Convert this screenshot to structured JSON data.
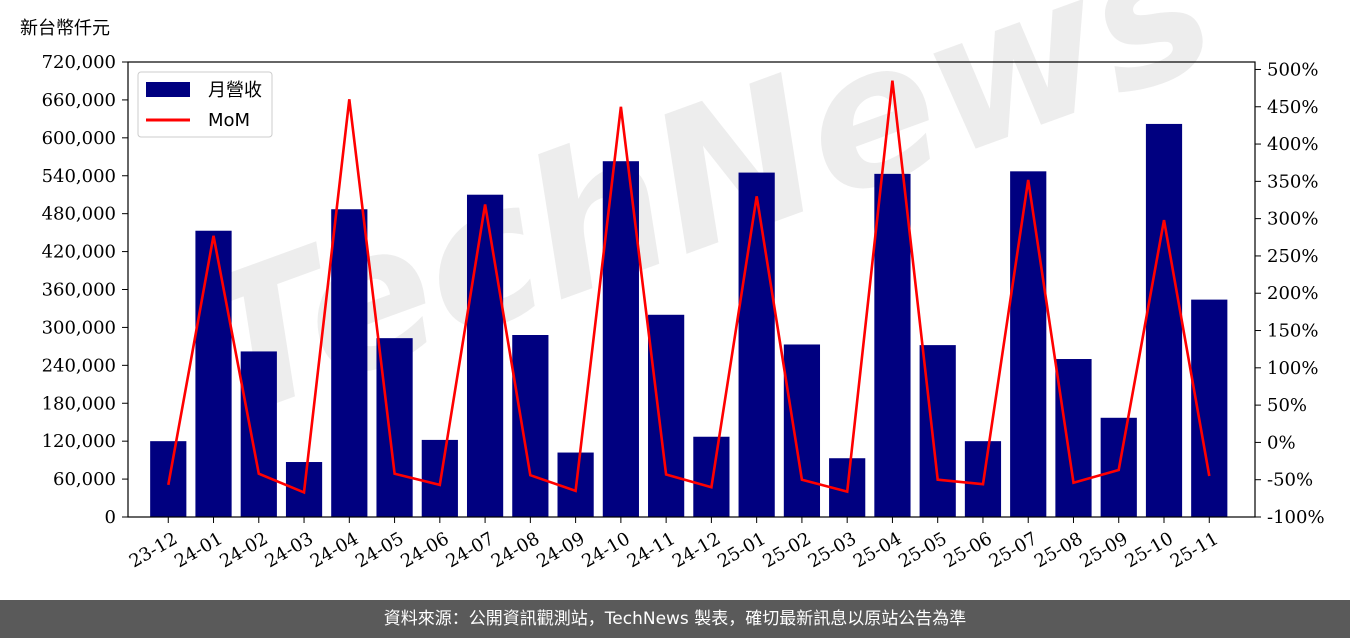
{
  "unit_label": "新台幣仟元",
  "footer_text": "資料來源：公開資訊觀測站，TechNews 製表，確切最新訊息以原站公告為準",
  "watermark_text": "TechNews",
  "colors": {
    "bar": "#000080",
    "line": "#ff0000",
    "watermark": "#d8d8d8",
    "footer_bg": "#5a5a5a"
  },
  "chart_data": {
    "type": "bar",
    "categories": [
      "23-12",
      "24-01",
      "24-02",
      "24-03",
      "24-04",
      "24-05",
      "24-06",
      "24-07",
      "24-08",
      "24-09",
      "24-10",
      "24-11",
      "24-12",
      "25-01",
      "25-02",
      "25-03",
      "25-04",
      "25-05",
      "25-06",
      "25-07",
      "25-08",
      "25-09",
      "25-10",
      "25-11"
    ],
    "series": [
      {
        "name": "月營收",
        "type": "bar",
        "axis": "left",
        "values": [
          120000,
          453000,
          262000,
          87000,
          487000,
          283000,
          122000,
          510000,
          288000,
          102000,
          563000,
          320000,
          127000,
          545000,
          273000,
          93000,
          543000,
          272000,
          120000,
          547000,
          250000,
          157000,
          622000,
          344000
        ]
      },
      {
        "name": "MoM",
        "type": "line",
        "axis": "right",
        "values": [
          -57,
          277,
          -42,
          -67,
          460,
          -42,
          -57,
          319,
          -44,
          -65,
          450,
          -43,
          -60,
          330,
          -50,
          -66,
          485,
          -50,
          -56,
          352,
          -54,
          -37,
          298,
          -45
        ]
      }
    ],
    "y_left": {
      "min": 0,
      "max": 720000,
      "ticks": [
        "0",
        "60,000",
        "120,000",
        "180,000",
        "240,000",
        "300,000",
        "360,000",
        "420,000",
        "480,000",
        "540,000",
        "600,000",
        "660,000",
        "720,000"
      ]
    },
    "y_right": {
      "min": -100,
      "max": 510,
      "ticks": [
        "-100%",
        "-50%",
        "0%",
        "50%",
        "100%",
        "150%",
        "200%",
        "250%",
        "300%",
        "350%",
        "400%",
        "450%",
        "500%"
      ]
    },
    "legend_position": "top-left",
    "grid": false
  }
}
